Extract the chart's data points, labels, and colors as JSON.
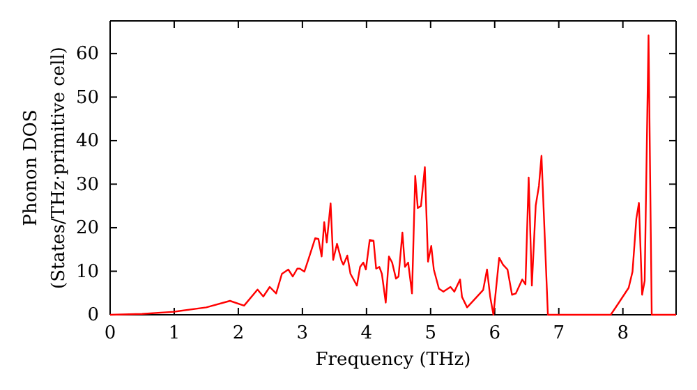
{
  "chart_data": {
    "type": "line",
    "xlabel": "Frequency (THz)",
    "ylabel": "Phonon DOS\n(States/THz·primitive cell)",
    "xlim": [
      0,
      8.83
    ],
    "ylim": [
      0,
      67.5
    ],
    "xticks": [
      0,
      1,
      2,
      3,
      4,
      5,
      6,
      7,
      8
    ],
    "yticks": [
      0,
      10,
      20,
      30,
      40,
      50,
      60
    ],
    "marker": "none",
    "line_style": "solid",
    "series": [
      {
        "color": "#ff0000",
        "x": [
          0,
          0.5,
          1.0,
          1.5,
          1.87,
          2.09,
          2.3,
          2.39,
          2.49,
          2.59,
          2.68,
          2.78,
          2.85,
          2.92,
          2.96,
          3.03,
          3.1,
          3.2,
          3.25,
          3.3,
          3.34,
          3.38,
          3.44,
          3.48,
          3.54,
          3.61,
          3.64,
          3.7,
          3.75,
          3.85,
          3.9,
          3.95,
          3.99,
          4.05,
          4.11,
          4.15,
          4.2,
          4.24,
          4.3,
          4.35,
          4.4,
          4.46,
          4.5,
          4.56,
          4.6,
          4.65,
          4.71,
          4.76,
          4.8,
          4.85,
          4.91,
          4.96,
          5.01,
          5.05,
          5.13,
          5.2,
          5.31,
          5.37,
          5.46,
          5.49,
          5.57,
          5.82,
          5.88,
          5.93,
          5.98,
          6.07,
          6.13,
          6.2,
          6.27,
          6.33,
          6.43,
          6.48,
          6.53,
          6.58,
          6.64,
          6.69,
          6.73,
          6.83,
          7.81,
          7.92,
          8.09,
          8.15,
          8.21,
          8.25,
          8.3,
          8.34,
          8.4,
          8.45,
          8.83
        ],
        "values": [
          0,
          0.2,
          0.7,
          1.7,
          3.2,
          2.1,
          5.8,
          4.2,
          6.4,
          4.9,
          9.4,
          10.4,
          8.8,
          10.6,
          10.6,
          9.9,
          13,
          17.6,
          17.4,
          13.4,
          21.3,
          16.6,
          25.6,
          12.6,
          16.3,
          12.4,
          11.5,
          13.6,
          9.4,
          6.7,
          11,
          12,
          10.4,
          17.2,
          17,
          10.6,
          11,
          9.4,
          2.8,
          13.4,
          12,
          8.3,
          8.8,
          18.9,
          11,
          12,
          4.9,
          31.9,
          24.5,
          25,
          33.9,
          12.2,
          15.8,
          10.4,
          6,
          5.3,
          6.4,
          5.3,
          8.1,
          4.1,
          1.7,
          5.7,
          10.4,
          4.1,
          0,
          13.1,
          11.5,
          10.4,
          4.6,
          4.9,
          8.1,
          7,
          31.5,
          6.7,
          25.1,
          29.6,
          36.5,
          0,
          0,
          2.4,
          6.2,
          9.9,
          22.1,
          25.7,
          4.6,
          7.8,
          64.2,
          0,
          0
        ]
      }
    ]
  }
}
